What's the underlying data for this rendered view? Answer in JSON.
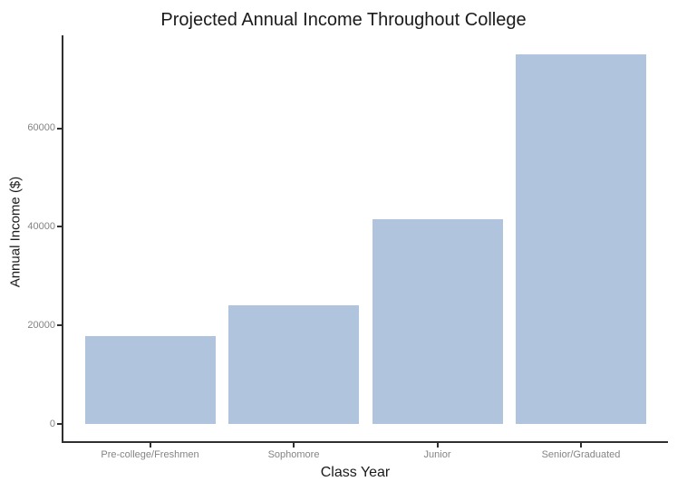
{
  "chart_data": {
    "type": "bar",
    "title": "Projected Annual Income Throughout College",
    "xlabel": "Class Year",
    "ylabel": "Annual Income ($)",
    "categories": [
      "Pre-college/Freshmen",
      "Sophomore",
      "Junior",
      "Senior/Graduated"
    ],
    "values": [
      17900,
      24000,
      41600,
      75000
    ],
    "yticks": [
      0,
      20000,
      40000,
      60000
    ],
    "ytick_labels": [
      "0",
      "20000",
      "40000",
      "60000"
    ],
    "ylim": [
      0,
      75000
    ],
    "grid": false,
    "legend": "none",
    "bar_color": "#B0C4DE",
    "axis_color": "#2f2f2f",
    "tick_label_color": "#848484",
    "text_color": "#1a1a1a",
    "background_color": "#ffffff"
  }
}
